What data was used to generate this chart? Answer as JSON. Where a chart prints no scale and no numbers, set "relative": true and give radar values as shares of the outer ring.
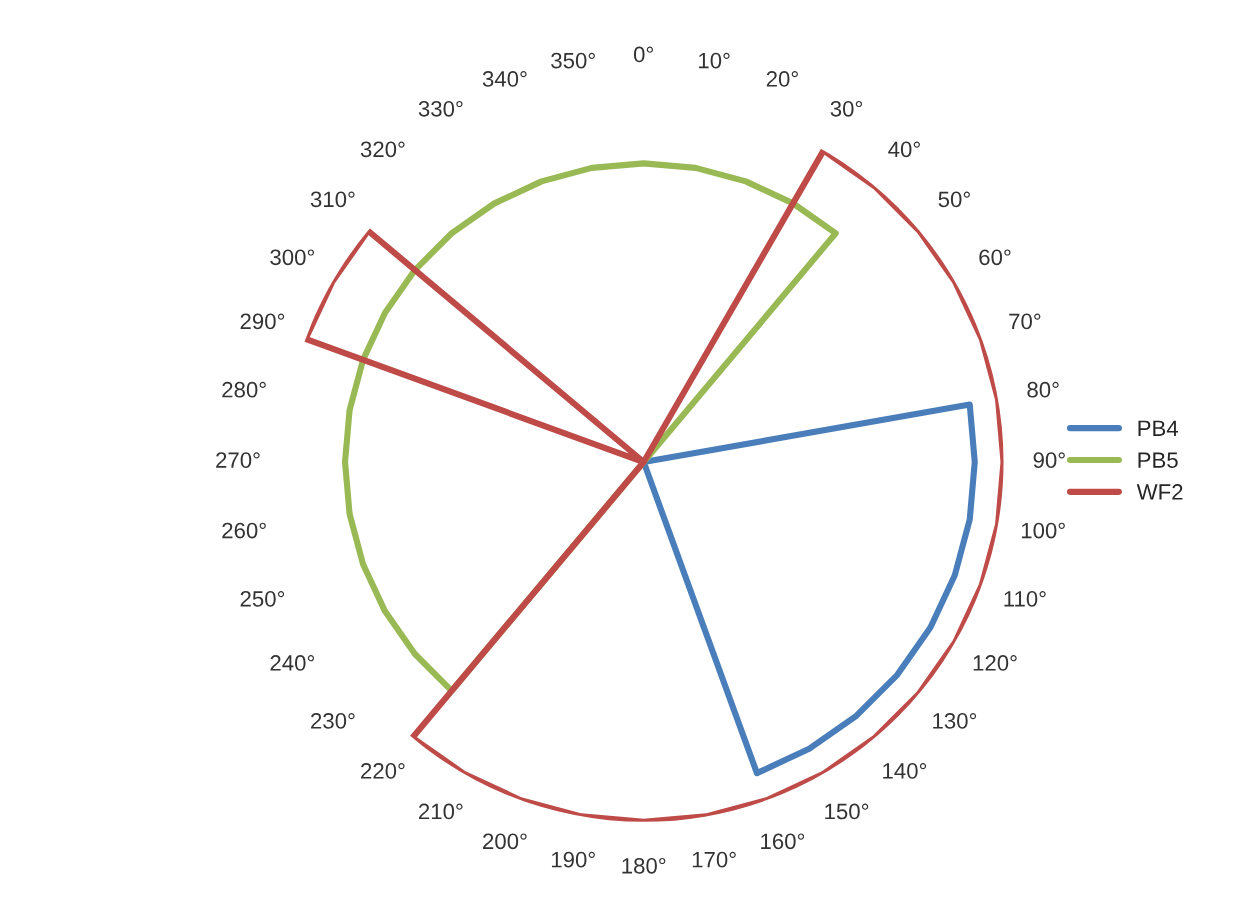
{
  "chart_data": {
    "type": "radar",
    "relative": true,
    "grid": false,
    "legend": "right",
    "marker": "none",
    "line_style": "solid",
    "categories": [
      "0°",
      "10°",
      "20°",
      "30°",
      "40°",
      "50°",
      "60°",
      "70°",
      "80°",
      "90°",
      "100°",
      "110°",
      "120°",
      "130°",
      "140°",
      "150°",
      "160°",
      "170°",
      "180°",
      "190°",
      "200°",
      "210°",
      "220°",
      "230°",
      "240°",
      "250°",
      "260°",
      "270°",
      "280°",
      "290°",
      "300°",
      "310°",
      "320°",
      "330°",
      "340°",
      "350°"
    ],
    "series": [
      {
        "name": "PB4",
        "color": "#4a7ebb",
        "values": [
          0,
          0,
          0,
          0,
          0,
          0,
          0,
          0,
          0.92,
          0.92,
          0.92,
          0.92,
          0.92,
          0.92,
          0.92,
          0.92,
          0.92,
          0,
          0,
          0,
          0,
          0,
          0,
          0,
          0,
          0,
          0,
          0,
          0,
          0,
          0,
          0,
          0,
          0,
          0,
          0
        ]
      },
      {
        "name": "PB5",
        "color": "#98b954",
        "values": [
          0.83,
          0.83,
          0.83,
          0.83,
          0.83,
          0,
          0,
          0,
          0,
          0,
          0,
          0,
          0,
          0,
          0,
          0,
          0,
          0,
          0,
          0,
          0,
          0,
          0.83,
          0.83,
          0.83,
          0.83,
          0.83,
          0.83,
          0.83,
          0.83,
          0.83,
          0.83,
          0.83,
          0.83,
          0.83,
          0.83
        ]
      },
      {
        "name": "WF2",
        "color": "#be4b48",
        "values": [
          0,
          0,
          0,
          1,
          1,
          1,
          1,
          1,
          1,
          1,
          1,
          1,
          1,
          1,
          1,
          1,
          1,
          1,
          1,
          1,
          1,
          1,
          1,
          0,
          0,
          0,
          0,
          0,
          0,
          1,
          1,
          1,
          0,
          0,
          0,
          0
        ]
      }
    ]
  }
}
